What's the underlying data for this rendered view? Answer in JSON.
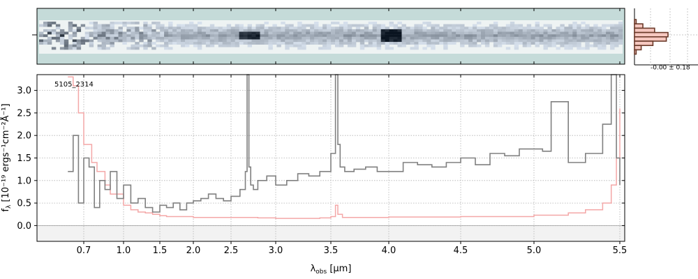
{
  "figure": {
    "object_id": "5105_2314",
    "xlabel_main": "λ",
    "xlabel_sub": "obs",
    "xlabel_unit": " [μm]",
    "ylabel": "f",
    "ylabel_sub": "λ",
    "ylabel_text": " [10⁻¹⁹ ergs⁻¹cm⁻²Å⁻¹]",
    "hist_label": "-0.00 ± 0.18"
  },
  "colors": {
    "flux": "#808080",
    "error": "#f4a7a7",
    "grid": "#b0b0b0",
    "spectrum_bg": "#c5dbd9",
    "trace": "#2f3e57",
    "hist_edge": "#6b3a2a",
    "hist_fill": "#f6c8c0"
  },
  "chart_data": {
    "type": "line",
    "xscale": "inverse-like (spacing compresses toward red)",
    "xlim": [
      0.55,
      5.53
    ],
    "ylim": [
      -0.35,
      3.35
    ],
    "xticks": [
      0.7,
      1.0,
      1.5,
      2.0,
      2.5,
      3.0,
      3.5,
      4.0,
      4.5,
      5.0,
      5.5
    ],
    "xtick_labels": [
      "0.7",
      "1.0",
      "1.5",
      "2.0",
      "2.5",
      "3.0",
      "3.5",
      "4.0",
      "4.5",
      "5.0",
      "5.5"
    ],
    "yticks": [
      0.0,
      0.5,
      1.0,
      1.5,
      2.0,
      2.5,
      3.0
    ],
    "ytick_labels": [
      "0.0",
      "0.5",
      "1.0",
      "1.5",
      "2.0",
      "2.5",
      "3.0"
    ],
    "grid": true,
    "series": [
      {
        "role": "flux",
        "x": [
          0.58,
          0.62,
          0.66,
          0.7,
          0.74,
          0.78,
          0.82,
          0.86,
          0.9,
          0.95,
          1.0,
          1.1,
          1.2,
          1.3,
          1.4,
          1.5,
          1.6,
          1.7,
          1.8,
          1.9,
          2.0,
          2.1,
          2.2,
          2.3,
          2.4,
          2.5,
          2.6,
          2.66,
          2.68,
          2.7,
          2.72,
          2.75,
          2.8,
          2.9,
          3.0,
          3.1,
          3.2,
          3.3,
          3.4,
          3.5,
          3.54,
          3.56,
          3.58,
          3.62,
          3.7,
          3.8,
          3.9,
          4.0,
          4.1,
          4.2,
          4.3,
          4.4,
          4.5,
          4.6,
          4.7,
          4.8,
          4.9,
          5.0,
          5.05,
          5.1,
          5.2,
          5.3,
          5.35,
          5.4,
          5.45,
          5.48,
          5.5
        ],
        "y": [
          1.2,
          2.0,
          0.5,
          1.5,
          1.3,
          0.4,
          1.0,
          0.8,
          1.2,
          0.6,
          0.9,
          0.5,
          0.6,
          0.4,
          0.3,
          0.45,
          0.4,
          0.5,
          0.35,
          0.5,
          0.55,
          0.6,
          0.7,
          0.6,
          0.55,
          0.65,
          0.8,
          1.2,
          3.35,
          1.3,
          0.9,
          0.8,
          1.0,
          1.1,
          0.9,
          1.0,
          1.15,
          1.1,
          1.2,
          1.6,
          3.35,
          1.8,
          1.3,
          1.2,
          1.25,
          1.3,
          1.2,
          1.2,
          1.4,
          1.35,
          1.3,
          1.4,
          1.5,
          1.35,
          1.6,
          1.55,
          1.7,
          1.7,
          1.65,
          2.75,
          1.4,
          1.6,
          1.6,
          2.25,
          3.35,
          1.5,
          0.9
        ]
      },
      {
        "role": "error",
        "x": [
          0.58,
          0.62,
          0.66,
          0.7,
          0.76,
          0.8,
          0.86,
          0.9,
          1.0,
          1.1,
          1.2,
          1.3,
          1.4,
          1.5,
          1.6,
          1.8,
          2.0,
          2.2,
          2.5,
          2.8,
          3.0,
          3.2,
          3.4,
          3.5,
          3.54,
          3.56,
          3.6,
          3.7,
          4.0,
          4.5,
          5.0,
          5.2,
          5.3,
          5.4,
          5.45,
          5.48,
          5.5
        ],
        "y": [
          3.3,
          3.1,
          2.5,
          1.8,
          1.4,
          1.2,
          0.9,
          0.7,
          0.45,
          0.35,
          0.3,
          0.28,
          0.25,
          0.22,
          0.2,
          0.2,
          0.18,
          0.18,
          0.18,
          0.17,
          0.16,
          0.16,
          0.17,
          0.2,
          0.45,
          0.25,
          0.18,
          0.18,
          0.19,
          0.2,
          0.23,
          0.28,
          0.35,
          0.5,
          0.9,
          1.5,
          2.6
        ]
      }
    ],
    "histogram": {
      "bins": [
        -0.6,
        -0.45,
        -0.3,
        -0.15,
        0.0,
        0.15,
        0.3,
        0.45
      ],
      "counts": [
        0.05,
        0.25,
        0.6,
        1.0,
        0.95,
        0.55,
        0.2,
        0.05
      ]
    },
    "spectrum2d": {
      "cols": 140,
      "rows": 11
    }
  }
}
